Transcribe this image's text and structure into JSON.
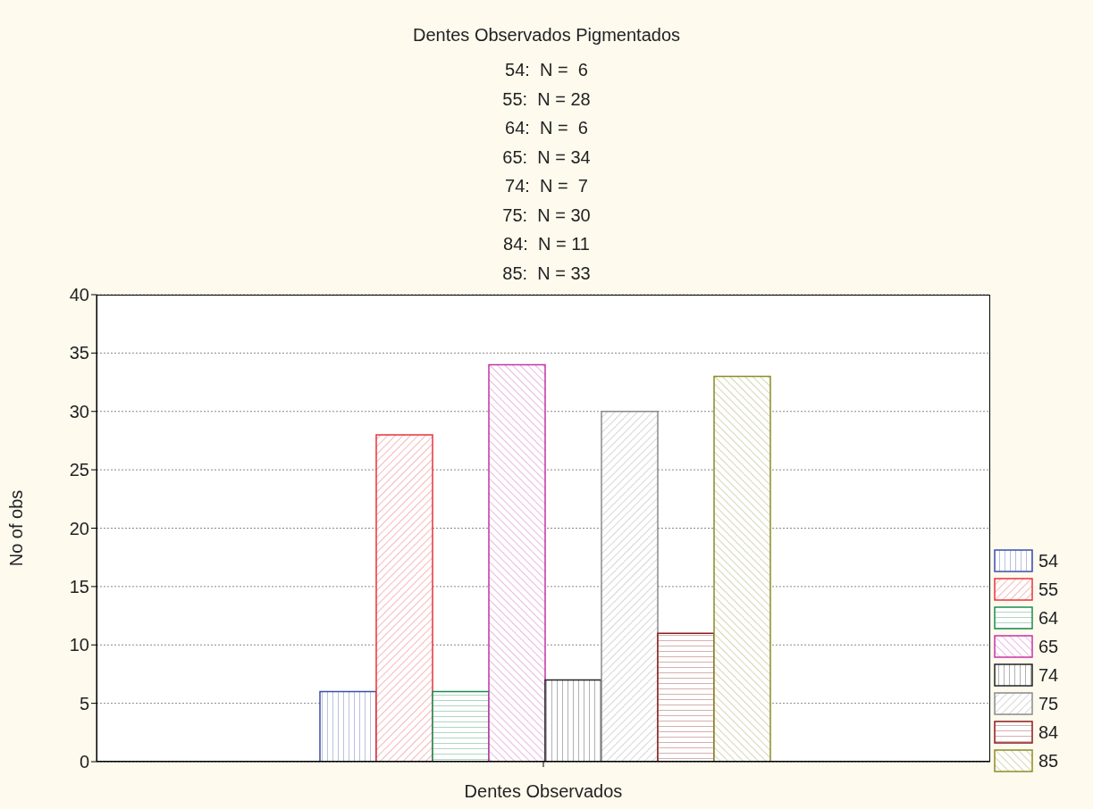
{
  "chart_data": {
    "type": "bar",
    "title": "Dentes Observados Pigmentados",
    "annotations": [
      "54:  N =  6",
      "55:  N = 28",
      "64:  N =  6",
      "65:  N = 34",
      "74:  N =  7",
      "75:  N = 30",
      "84:  N = 11",
      "85:  N = 33"
    ],
    "xlabel": "Dentes Observados",
    "ylabel": "No of obs",
    "categories": [
      null
    ],
    "series": [
      {
        "name": "54",
        "color": "#3b4fa8",
        "values": [
          6
        ]
      },
      {
        "name": "55",
        "color": "#e8333a",
        "values": [
          28
        ]
      },
      {
        "name": "64",
        "color": "#1a8c4e",
        "values": [
          6
        ]
      },
      {
        "name": "65",
        "color": "#c433a6",
        "values": [
          34
        ]
      },
      {
        "name": "74",
        "color": "#222222",
        "values": [
          7
        ]
      },
      {
        "name": "75",
        "color": "#8a8a8a",
        "values": [
          30
        ]
      },
      {
        "name": "84",
        "color": "#8b1a1a",
        "values": [
          11
        ]
      },
      {
        "name": "85",
        "color": "#8c8c24",
        "values": [
          33
        ]
      }
    ],
    "ylim": [
      0,
      40
    ],
    "yticks": [
      0,
      5,
      10,
      15,
      20,
      25,
      30,
      35,
      40
    ],
    "grid": "y",
    "legend": "bottom right"
  }
}
